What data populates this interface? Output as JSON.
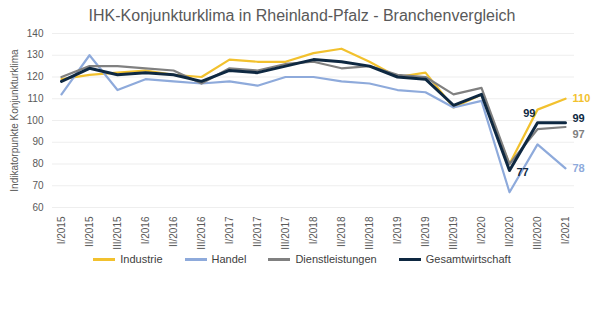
{
  "chart_data": {
    "type": "line",
    "title": "IHK-Konjunkturklima in Rheinland-Pfalz - Branchenvergleich",
    "y_label": "Indikatorpunkte Konjunkturklima",
    "categories": [
      "I/2015",
      "II/2015",
      "III/2015",
      "I/2016",
      "II/2016",
      "III/2016",
      "I/2017",
      "II/2017",
      "III/2017",
      "I/2018",
      "II/2018",
      "III/2018",
      "I/2019",
      "II/2019",
      "III/2019",
      "I/2020",
      "II/2020",
      "III/2020",
      "I/2021"
    ],
    "series": [
      {
        "name": "Industrie",
        "color": "#f2c12e",
        "values": [
          119,
          121,
          122,
          123,
          121,
          120,
          128,
          127,
          127,
          131,
          133,
          127,
          120,
          122,
          106,
          112,
          80,
          105,
          110
        ],
        "value_labels": [
          null,
          null,
          null,
          null,
          null,
          null,
          null,
          null,
          null,
          null,
          null,
          null,
          null,
          null,
          null,
          null,
          null,
          null,
          "110"
        ]
      },
      {
        "name": "Handel",
        "color": "#8eaadb",
        "values": [
          112,
          130,
          114,
          119,
          118,
          117,
          118,
          116,
          120,
          120,
          118,
          117,
          114,
          113,
          106,
          109,
          67,
          89,
          78
        ],
        "value_labels": [
          null,
          null,
          null,
          null,
          null,
          null,
          null,
          null,
          null,
          null,
          null,
          null,
          null,
          null,
          null,
          null,
          null,
          null,
          "78"
        ]
      },
      {
        "name": "Dienstleistungen",
        "color": "#808080",
        "values": [
          120,
          125,
          125,
          124,
          123,
          117,
          124,
          123,
          126,
          127,
          124,
          125,
          121,
          120,
          112,
          115,
          80,
          96,
          97
        ],
        "value_labels": [
          null,
          null,
          null,
          null,
          null,
          null,
          null,
          null,
          null,
          null,
          null,
          null,
          null,
          null,
          null,
          null,
          null,
          null,
          "97"
        ]
      },
      {
        "name": "Gesamtwirtschaft",
        "color": "#0e2841",
        "values": [
          118,
          124,
          121,
          122,
          121,
          118,
          123,
          122,
          125,
          128,
          127,
          125,
          120,
          119,
          107,
          112,
          77,
          99,
          99
        ],
        "value_labels": [
          null,
          null,
          null,
          null,
          null,
          null,
          null,
          null,
          null,
          null,
          null,
          null,
          null,
          null,
          null,
          null,
          "77",
          "99",
          "99"
        ]
      }
    ],
    "ylim": [
      60,
      140
    ],
    "yticks": [
      60,
      70,
      80,
      90,
      100,
      110,
      120,
      130,
      140
    ],
    "grid": true,
    "legend": "bottom",
    "data_labels": true
  }
}
